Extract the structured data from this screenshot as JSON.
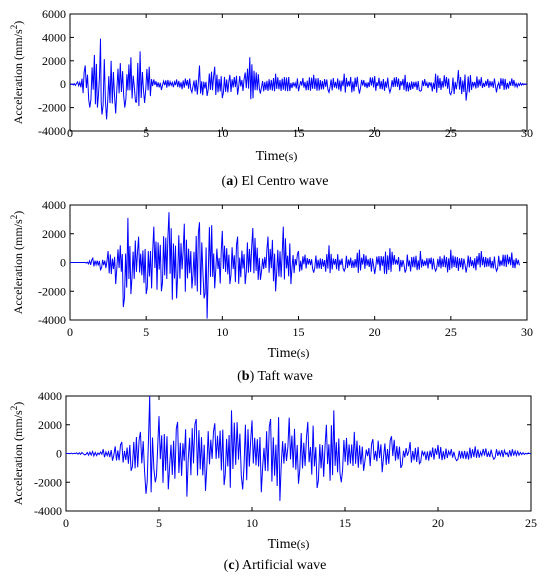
{
  "chart_data": [
    {
      "type": "line",
      "caption_letter": "a",
      "caption_text": "El Centro wave",
      "xlabel": "Time",
      "xunit": "(s)",
      "ylabel": "Acceleration (mm/s",
      "ylabel_sup": "2",
      "ylabel_close": ")",
      "xlim": [
        0,
        30
      ],
      "ylim": [
        -4000,
        6000
      ],
      "xticks": [
        "0",
        "5",
        "10",
        "15",
        "20",
        "25",
        "30"
      ],
      "yticks": [
        "6000",
        "4000",
        "2000",
        "0",
        "-2000",
        "-4000"
      ],
      "line_color": "#0000ff",
      "series": [
        {
          "x": [
            0,
            0.5,
            1.0,
            1.3,
            1.6,
            1.8,
            2.0,
            2.1,
            2.4,
            2.7,
            3.0,
            3.3,
            3.6,
            4.0,
            4.3,
            4.6,
            4.9,
            5.2,
            5.5,
            6.0,
            7.0,
            8.0,
            8.5,
            9.0,
            9.5,
            10.0,
            10.5,
            11.0,
            11.5,
            11.8,
            12.5,
            13.5,
            15.0,
            16.0,
            17.0,
            18.0,
            19.0,
            20.0,
            21.0,
            22.0,
            23.0,
            24.0,
            25.0,
            25.5,
            26.0,
            27.0,
            28.0,
            29.0,
            30.0
          ],
          "y": [
            0,
            200,
            1600,
            -2000,
            2500,
            -2000,
            3900,
            -2600,
            -3000,
            2000,
            -2500,
            1800,
            -2000,
            2300,
            -1500,
            2800,
            -1600,
            1500,
            400,
            -500,
            400,
            -700,
            1600,
            -1000,
            1500,
            -1200,
            800,
            -900,
            1000,
            2300,
            -800,
            900,
            -600,
            800,
            -700,
            900,
            -800,
            700,
            -700,
            800,
            -600,
            900,
            -900,
            1200,
            -1400,
            600,
            -700,
            500,
            0
          ]
        }
      ]
    },
    {
      "type": "line",
      "caption_letter": "b",
      "caption_text": "Taft wave",
      "xlabel": "Time",
      "xunit": "(s)",
      "ylabel": "Acceleration (mm/s",
      "ylabel_sup": "2",
      "ylabel_close": ")",
      "xlim": [
        0,
        30
      ],
      "ylim": [
        -4000,
        4000
      ],
      "xticks": [
        "0",
        "5",
        "10",
        "15",
        "20",
        "25",
        "30"
      ],
      "yticks": [
        "4000",
        "2000",
        "0",
        "-2000",
        "-4000"
      ],
      "line_color": "#0000ff",
      "series": [
        {
          "x": [
            0,
            1.0,
            1.5,
            2.0,
            2.5,
            3.0,
            3.3,
            3.5,
            3.8,
            4.0,
            4.5,
            5.0,
            5.5,
            6.0,
            6.5,
            7.0,
            7.5,
            8.0,
            8.5,
            8.8,
            9.0,
            9.3,
            9.5,
            10.0,
            10.5,
            11.0,
            11.5,
            12.0,
            12.5,
            13.0,
            13.5,
            14.0,
            14.5,
            15.0,
            16.0,
            17.0,
            18.0,
            19.0,
            20.0,
            21.0,
            22.0,
            23.0,
            24.0,
            25.0,
            26.0,
            27.0,
            28.0,
            29.0,
            29.5
          ],
          "y": [
            0,
            0,
            300,
            -500,
            800,
            -1500,
            1200,
            -3100,
            3100,
            -2200,
            1800,
            -2200,
            2500,
            -2000,
            3500,
            -2500,
            2700,
            -1800,
            2800,
            -2500,
            -3900,
            2600,
            -1800,
            2200,
            -1500,
            1800,
            -1500,
            2400,
            -1200,
            1800,
            -2000,
            2500,
            -1500,
            800,
            -700,
            1200,
            -600,
            900,
            -800,
            1000,
            -700,
            800,
            -600,
            900,
            -700,
            800,
            -600,
            700,
            -200
          ]
        }
      ]
    },
    {
      "type": "line",
      "caption_letter": "c",
      "caption_text": "Artificial wave",
      "xlabel": "Time",
      "xunit": "(s)",
      "ylabel": "Acceleration (mm/s",
      "ylabel_sup": "2",
      "ylabel_close": ")",
      "xlim": [
        0,
        25
      ],
      "ylim": [
        -4000,
        4000
      ],
      "xticks": [
        "0",
        "5",
        "10",
        "15",
        "20",
        "25"
      ],
      "yticks": [
        "4000",
        "2000",
        "0",
        "-2000",
        "-4000"
      ],
      "line_color": "#0000ff",
      "series": [
        {
          "x": [
            0,
            1.0,
            2.0,
            2.5,
            3.0,
            3.5,
            4.0,
            4.3,
            4.5,
            4.8,
            5.0,
            5.5,
            6.0,
            6.5,
            7.0,
            7.5,
            8.0,
            8.5,
            8.9,
            9.5,
            10.0,
            10.5,
            11.0,
            11.5,
            12.0,
            12.5,
            13.0,
            13.5,
            14.0,
            14.4,
            14.8,
            15.5,
            16.0,
            16.5,
            17.0,
            17.5,
            18.0,
            18.5,
            19.0,
            20.0,
            21.0,
            22.0,
            23.0,
            24.0,
            25.0
          ],
          "y": [
            0,
            -100,
            300,
            -500,
            800,
            -1200,
            1500,
            -2800,
            4000,
            -2000,
            2600,
            -2500,
            2200,
            -3000,
            2400,
            -2600,
            2100,
            -2200,
            3000,
            -2500,
            2300,
            -2700,
            2400,
            -3300,
            2500,
            -2100,
            2200,
            -2400,
            2000,
            3000,
            -2000,
            1500,
            -1200,
            1000,
            -1300,
            1200,
            -1000,
            800,
            -700,
            600,
            -500,
            500,
            -400,
            300,
            0
          ]
        }
      ]
    }
  ]
}
